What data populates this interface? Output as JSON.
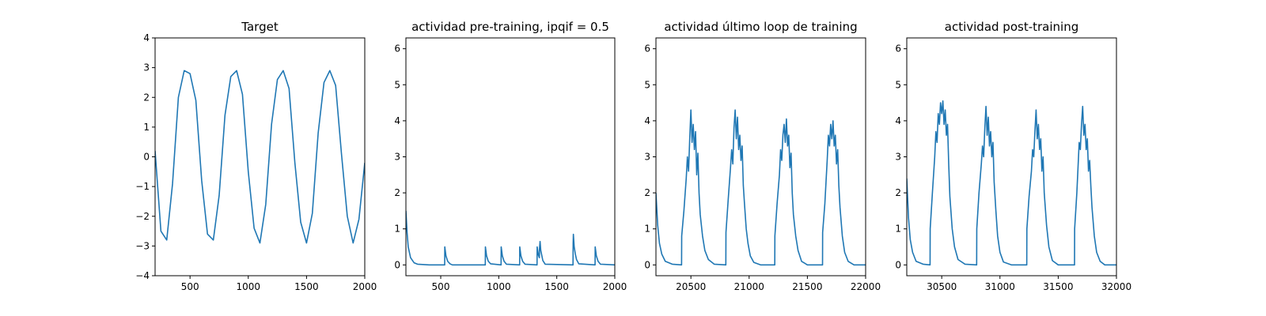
{
  "chart_data": [
    {
      "type": "line",
      "title": "Target",
      "xlim": [
        200,
        2000
      ],
      "ylim": [
        -4,
        4
      ],
      "xticks": [
        500,
        1000,
        1500,
        2000
      ],
      "yticks": [
        -4,
        -3,
        -2,
        -1,
        0,
        1,
        2,
        3,
        4
      ],
      "xlabel": "",
      "ylabel": "",
      "series": [
        {
          "color": "#1f77b4",
          "x": [
            200,
            250,
            300,
            350,
            400,
            450,
            500,
            550,
            600,
            650,
            700,
            750,
            800,
            850,
            900,
            950,
            1000,
            1050,
            1100,
            1150,
            1200,
            1250,
            1300,
            1350,
            1400,
            1450,
            1500,
            1550,
            1600,
            1650,
            1700,
            1750,
            1800,
            1850,
            1900,
            1950,
            2000
          ],
          "y": [
            0.2,
            -2.5,
            -2.8,
            -0.9,
            2.0,
            2.9,
            2.8,
            1.9,
            -0.8,
            -2.6,
            -2.8,
            -1.3,
            1.4,
            2.7,
            2.9,
            2.1,
            -0.5,
            -2.4,
            -2.9,
            -1.6,
            1.1,
            2.6,
            2.9,
            2.3,
            -0.2,
            -2.2,
            -2.9,
            -1.9,
            0.8,
            2.5,
            2.9,
            2.4,
            0.1,
            -2.0,
            -2.9,
            -2.1,
            -0.2
          ]
        }
      ]
    },
    {
      "type": "line",
      "title": "actividad pre-training, ipqif = 0.5",
      "xlim": [
        200,
        2000
      ],
      "ylim": [
        -0.3,
        6.3
      ],
      "xticks": [
        500,
        1000,
        1500,
        2000
      ],
      "yticks": [
        0,
        1,
        2,
        3,
        4,
        5,
        6
      ],
      "xlabel": "",
      "ylabel": "",
      "series": [
        {
          "color": "#1f77b4",
          "x": [
            200,
            210,
            220,
            240,
            270,
            300,
            400,
            534,
            535,
            545,
            560,
            580,
            600,
            884,
            885,
            895,
            910,
            930,
            1020,
            1021,
            1031,
            1046,
            1066,
            1180,
            1181,
            1191,
            1206,
            1226,
            1330,
            1331,
            1341,
            1350,
            1351,
            1356,
            1362,
            1380,
            1400,
            1640,
            1641,
            1643,
            1650,
            1660,
            1670,
            1690,
            1830,
            1831,
            1841,
            1856,
            1876,
            2000
          ],
          "y": [
            1.5,
            0.9,
            0.5,
            0.2,
            0.06,
            0.02,
            0.0,
            0.0,
            0.5,
            0.25,
            0.1,
            0.03,
            0.0,
            0.0,
            0.5,
            0.25,
            0.1,
            0.03,
            0.0,
            0.5,
            0.25,
            0.1,
            0.02,
            0.0,
            0.5,
            0.25,
            0.1,
            0.02,
            0.0,
            0.5,
            0.28,
            0.2,
            0.45,
            0.65,
            0.4,
            0.12,
            0.02,
            0.0,
            0.6,
            0.85,
            0.5,
            0.3,
            0.15,
            0.03,
            0.0,
            0.5,
            0.25,
            0.1,
            0.02,
            0.0
          ]
        }
      ]
    },
    {
      "type": "line",
      "title": "actividad último loop de training",
      "xlim": [
        20200,
        22000
      ],
      "ylim": [
        -0.3,
        6.3
      ],
      "xticks": [
        20500,
        21000,
        21500,
        22000
      ],
      "yticks": [
        0,
        1,
        2,
        3,
        4,
        5,
        6
      ],
      "xlabel": "",
      "ylabel": "",
      "series": [
        {
          "color": "#1f77b4",
          "x": [
            20200,
            20215,
            20230,
            20250,
            20280,
            20340,
            20420,
            20421,
            20440,
            20460,
            20470,
            20480,
            20490,
            20500,
            20510,
            20520,
            20530,
            20540,
            20550,
            20560,
            20570,
            20580,
            20600,
            20620,
            20650,
            20700,
            20800,
            20801,
            20820,
            20840,
            20850,
            20860,
            20870,
            20880,
            20890,
            20900,
            20910,
            20920,
            20930,
            20940,
            20950,
            20960,
            20975,
            20990,
            21010,
            21040,
            21100,
            21220,
            21221,
            21240,
            21260,
            21270,
            21280,
            21290,
            21300,
            21310,
            21320,
            21330,
            21340,
            21350,
            21360,
            21370,
            21380,
            21400,
            21420,
            21450,
            21500,
            21630,
            21631,
            21650,
            21660,
            21670,
            21680,
            21690,
            21700,
            21710,
            21720,
            21730,
            21740,
            21750,
            21760,
            21770,
            21780,
            21800,
            21820,
            21850,
            21900,
            22000
          ],
          "y": [
            2.0,
            1.1,
            0.6,
            0.3,
            0.1,
            0.02,
            0.0,
            0.8,
            1.5,
            2.4,
            3.0,
            2.6,
            3.5,
            4.3,
            3.4,
            3.9,
            3.2,
            3.7,
            2.5,
            3.1,
            2.0,
            1.4,
            0.8,
            0.4,
            0.15,
            0.02,
            0.0,
            0.9,
            1.8,
            2.7,
            3.2,
            2.8,
            3.8,
            4.3,
            3.5,
            4.1,
            3.2,
            3.6,
            2.9,
            3.3,
            2.2,
            1.7,
            1.0,
            0.6,
            0.25,
            0.07,
            0.0,
            0.0,
            0.8,
            1.7,
            2.5,
            3.2,
            2.9,
            3.6,
            3.9,
            3.4,
            4.05,
            3.3,
            3.6,
            2.7,
            3.1,
            2.0,
            1.4,
            0.8,
            0.4,
            0.1,
            0.0,
            0.0,
            0.9,
            1.7,
            2.3,
            2.9,
            3.6,
            3.3,
            3.9,
            3.5,
            4.0,
            3.3,
            3.6,
            2.8,
            3.2,
            2.2,
            1.6,
            0.8,
            0.35,
            0.1,
            0.0,
            0.0
          ]
        }
      ]
    },
    {
      "type": "line",
      "title": "actividad post-training",
      "xlim": [
        30200,
        32000
      ],
      "ylim": [
        -0.3,
        6.3
      ],
      "xticks": [
        30500,
        31000,
        31500,
        32000
      ],
      "yticks": [
        0,
        1,
        2,
        3,
        4,
        5,
        6
      ],
      "xlabel": "",
      "ylabel": "",
      "series": [
        {
          "color": "#1f77b4",
          "x": [
            30200,
            30215,
            30230,
            30250,
            30280,
            30340,
            30400,
            30401,
            30420,
            30440,
            30450,
            30460,
            30470,
            30480,
            30490,
            30500,
            30510,
            30520,
            30530,
            30540,
            30550,
            30560,
            30570,
            30590,
            30610,
            30640,
            30700,
            30800,
            30801,
            30820,
            30840,
            30850,
            30860,
            30870,
            30880,
            30890,
            30900,
            30910,
            30920,
            30930,
            30940,
            30950,
            30965,
            30980,
            31000,
            31030,
            31100,
            31230,
            31231,
            31250,
            31270,
            31280,
            31290,
            31300,
            31310,
            31320,
            31330,
            31340,
            31350,
            31360,
            31370,
            31380,
            31400,
            31420,
            31450,
            31500,
            31640,
            31641,
            31660,
            31670,
            31680,
            31690,
            31700,
            31710,
            31720,
            31730,
            31740,
            31750,
            31760,
            31770,
            31780,
            31790,
            31810,
            31830,
            31860,
            31900,
            32000
          ],
          "y": [
            2.4,
            1.3,
            0.7,
            0.35,
            0.1,
            0.02,
            0.0,
            1.0,
            2.0,
            3.0,
            3.7,
            3.4,
            4.2,
            3.9,
            4.5,
            4.2,
            4.55,
            3.9,
            4.3,
            3.6,
            3.9,
            2.8,
            1.9,
            1.0,
            0.5,
            0.15,
            0.02,
            0.0,
            1.0,
            2.0,
            2.8,
            3.3,
            3.0,
            3.8,
            4.4,
            3.6,
            4.1,
            3.3,
            3.7,
            3.0,
            3.4,
            2.3,
            1.5,
            0.8,
            0.35,
            0.08,
            0.0,
            0.0,
            1.0,
            1.9,
            2.6,
            3.2,
            3.0,
            3.7,
            4.3,
            3.5,
            3.9,
            3.2,
            3.5,
            2.6,
            3.0,
            2.0,
            1.1,
            0.5,
            0.12,
            0.0,
            0.0,
            1.0,
            2.0,
            2.7,
            3.4,
            3.2,
            3.9,
            4.4,
            3.6,
            3.9,
            3.2,
            3.5,
            2.6,
            2.9,
            2.2,
            1.6,
            0.8,
            0.35,
            0.1,
            0.0,
            0.0
          ]
        }
      ]
    }
  ]
}
